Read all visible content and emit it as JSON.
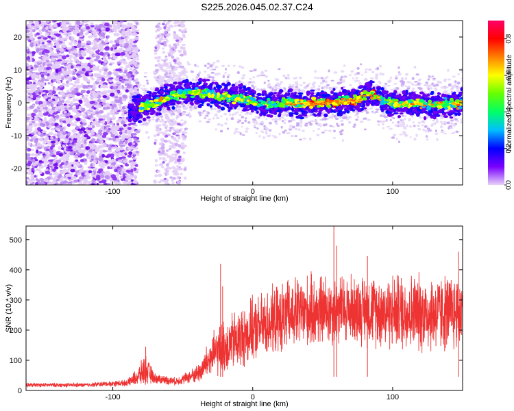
{
  "title": "S225.2026.045.02.37.C24",
  "chart_data": [
    {
      "type": "heatmap",
      "title": "S225.2026.045.02.37.C24",
      "xlabel": "Height of straight line (km)",
      "ylabel": "Frequency (Hz)",
      "xlim": [
        -162,
        150
      ],
      "ylim": [
        -25,
        25
      ],
      "xticks": [
        -100,
        0,
        100
      ],
      "xtick_labels": [
        "-100",
        "0",
        "100"
      ],
      "yticks": [
        -20,
        -10,
        0,
        10,
        20
      ],
      "ytick_labels": [
        "-20",
        "-10",
        "0",
        "10",
        "20"
      ],
      "colorbar": {
        "label": "Normalized spectral amplitude",
        "range": [
          0,
          0.9
        ],
        "ticks": [
          0,
          0.2,
          0.4,
          0.6,
          0.8
        ],
        "tick_labels": [
          "0.0",
          "0.2",
          "0.4",
          "0.6",
          "0.8"
        ],
        "colors": [
          "#e6d2f8",
          "#7a00ff",
          "#0000ff",
          "#00bfff",
          "#00ff66",
          "#66ff00",
          "#ffff00",
          "#ff8000",
          "#ff0000",
          "#ff0066"
        ]
      },
      "features": {
        "noise_region_km": [
          -162,
          -82
        ],
        "noise_plume_km": [
          -70,
          -48
        ],
        "signal_start_km": -88,
        "signal_track_hz": [
          {
            "x": -95,
            "y": -6
          },
          {
            "x": -85,
            "y": -2
          },
          {
            "x": -78,
            "y": -1
          },
          {
            "x": -70,
            "y": 0
          },
          {
            "x": -60,
            "y": 2
          },
          {
            "x": -48,
            "y": 3
          },
          {
            "x": -35,
            "y": 3
          },
          {
            "x": -25,
            "y": 2
          },
          {
            "x": -15,
            "y": 1.5
          },
          {
            "x": -5,
            "y": 1
          },
          {
            "x": 5,
            "y": 0
          },
          {
            "x": 15,
            "y": -0.5
          },
          {
            "x": 25,
            "y": 0
          },
          {
            "x": 35,
            "y": -0.5
          },
          {
            "x": 45,
            "y": 0
          },
          {
            "x": 55,
            "y": 0
          },
          {
            "x": 65,
            "y": 0.5
          },
          {
            "x": 75,
            "y": 1
          },
          {
            "x": 82,
            "y": 3
          },
          {
            "x": 88,
            "y": 2
          },
          {
            "x": 95,
            "y": 0.5
          },
          {
            "x": 105,
            "y": -0.5
          },
          {
            "x": 115,
            "y": 0
          },
          {
            "x": 125,
            "y": -1
          },
          {
            "x": 135,
            "y": 0
          },
          {
            "x": 145,
            "y": -0.5
          },
          {
            "x": 150,
            "y": 0
          }
        ]
      }
    },
    {
      "type": "line",
      "xlabel": "Height of straight line (km)",
      "ylabel": "SNR (10 * v/v)",
      "xlim": [
        -162,
        150
      ],
      "ylim": [
        0,
        545
      ],
      "xticks": [
        -100,
        0,
        100
      ],
      "xtick_labels": [
        "-100",
        "0",
        "100"
      ],
      "yticks": [
        0,
        100,
        200,
        300,
        400,
        500
      ],
      "ytick_labels": [
        "0",
        "100",
        "200",
        "300",
        "400",
        "500"
      ],
      "color": "#ee3333",
      "series": [
        {
          "name": "SNR",
          "envelope": [
            {
              "x": -162,
              "base": 18,
              "spread": 8
            },
            {
              "x": -120,
              "base": 18,
              "spread": 8
            },
            {
              "x": -90,
              "base": 25,
              "spread": 12
            },
            {
              "x": -82,
              "base": 45,
              "spread": 35
            },
            {
              "x": -77,
              "base": 70,
              "spread": 60
            },
            {
              "x": -70,
              "base": 40,
              "spread": 20
            },
            {
              "x": -55,
              "base": 30,
              "spread": 15
            },
            {
              "x": -45,
              "base": 45,
              "spread": 25
            },
            {
              "x": -38,
              "base": 60,
              "spread": 40
            },
            {
              "x": -30,
              "base": 110,
              "spread": 80
            },
            {
              "x": -22,
              "base": 140,
              "spread": 100
            },
            {
              "x": -10,
              "base": 170,
              "spread": 120
            },
            {
              "x": 0,
              "base": 200,
              "spread": 120
            },
            {
              "x": 15,
              "base": 230,
              "spread": 130
            },
            {
              "x": 30,
              "base": 255,
              "spread": 140
            },
            {
              "x": 50,
              "base": 265,
              "spread": 140
            },
            {
              "x": 75,
              "base": 270,
              "spread": 130
            },
            {
              "x": 90,
              "base": 265,
              "spread": 140
            },
            {
              "x": 110,
              "base": 260,
              "spread": 150
            },
            {
              "x": 130,
              "base": 255,
              "spread": 150
            },
            {
              "x": 150,
              "base": 260,
              "spread": 150
            }
          ],
          "spikes": [
            {
              "x": -76.5,
              "value": 145
            },
            {
              "x": -23,
              "value": 420
            },
            {
              "x": -21.5,
              "value": 345
            },
            {
              "x": 58,
              "value": 545
            },
            {
              "x": 60,
              "value": 480
            },
            {
              "x": 82,
              "value": 445
            },
            {
              "x": 147,
              "value": 460
            }
          ]
        }
      ]
    }
  ]
}
